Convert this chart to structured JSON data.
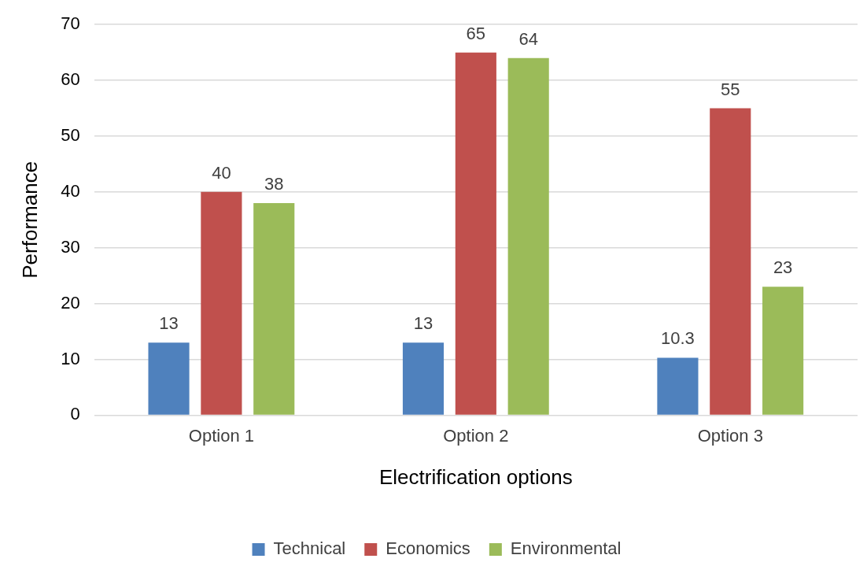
{
  "chart_data": {
    "type": "bar",
    "xlabel": "Electrification options",
    "ylabel": "Performance",
    "categories": [
      "Option 1",
      "Option 2",
      "Option 3"
    ],
    "series": [
      {
        "name": "Technical",
        "color": "#4f81bd",
        "values": [
          13,
          13,
          10.3
        ]
      },
      {
        "name": "Economics",
        "color": "#c0504d",
        "values": [
          40,
          65,
          55
        ]
      },
      {
        "name": "Environmental",
        "color": "#9bbb59",
        "values": [
          38,
          64,
          23
        ]
      }
    ],
    "ylim": [
      0,
      70
    ],
    "yticks": [
      0,
      10,
      20,
      30,
      40,
      50,
      60,
      70
    ],
    "grid": "y",
    "legend": "bottom",
    "data_labels": true
  }
}
